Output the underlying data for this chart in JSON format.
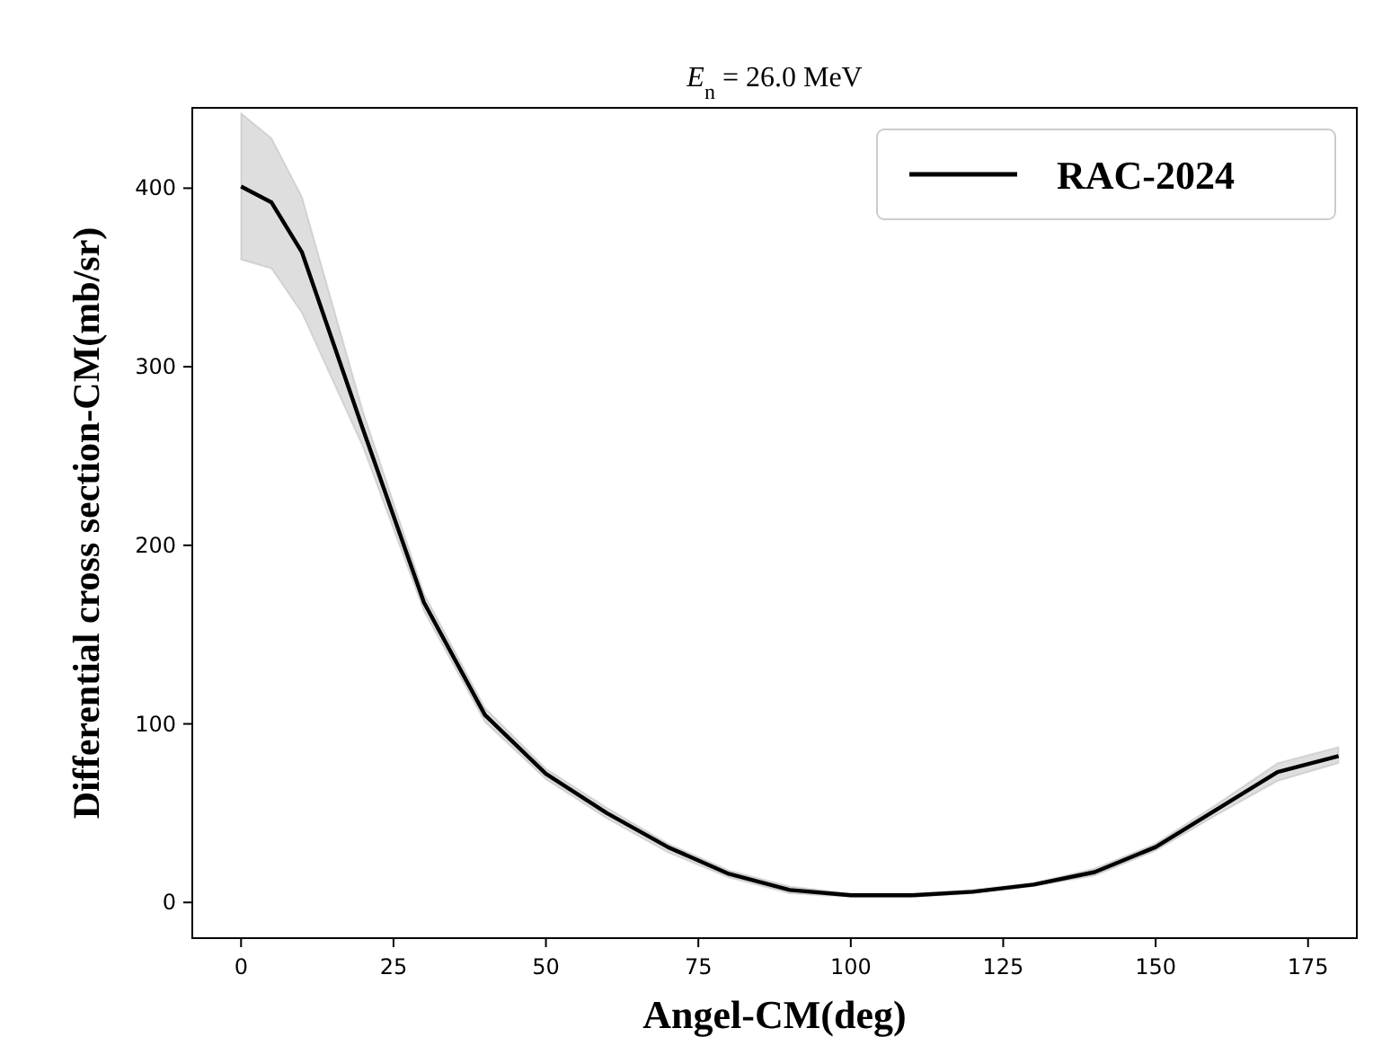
{
  "chart_data": {
    "type": "line",
    "title": "E$_{n}$ = 26.0 MeV",
    "xlabel": "Angel-CM(deg)",
    "ylabel": "Differential cross section-CM(mb/sr)",
    "x": [
      0,
      5,
      10,
      20,
      30,
      40,
      50,
      60,
      70,
      80,
      90,
      100,
      110,
      120,
      130,
      140,
      150,
      160,
      170,
      180
    ],
    "series": [
      {
        "name": "RAC-2024",
        "color": "#000000",
        "values": [
          401,
          392,
          364,
          265,
          168,
          105,
          72,
          50,
          31,
          16,
          7,
          4,
          4,
          6,
          10,
          17,
          31,
          52,
          73,
          82
        ],
        "lower": [
          360,
          355,
          330,
          255,
          163,
          101,
          69,
          47,
          28,
          14,
          5,
          3,
          3,
          5,
          9,
          15,
          29,
          49,
          68,
          78
        ],
        "upper": [
          442,
          428,
          395,
          275,
          173,
          109,
          75,
          53,
          33,
          18,
          9,
          5,
          5,
          7,
          11,
          19,
          33,
          55,
          78,
          87
        ]
      }
    ],
    "xlim": [
      -8,
      183
    ],
    "ylim": [
      -20,
      445
    ],
    "xticks": [
      0,
      25,
      50,
      75,
      100,
      125,
      150,
      175
    ],
    "yticks": [
      0,
      100,
      200,
      300,
      400
    ],
    "grid": false,
    "legend": "top right",
    "line_style": "solid",
    "marker": "none"
  }
}
